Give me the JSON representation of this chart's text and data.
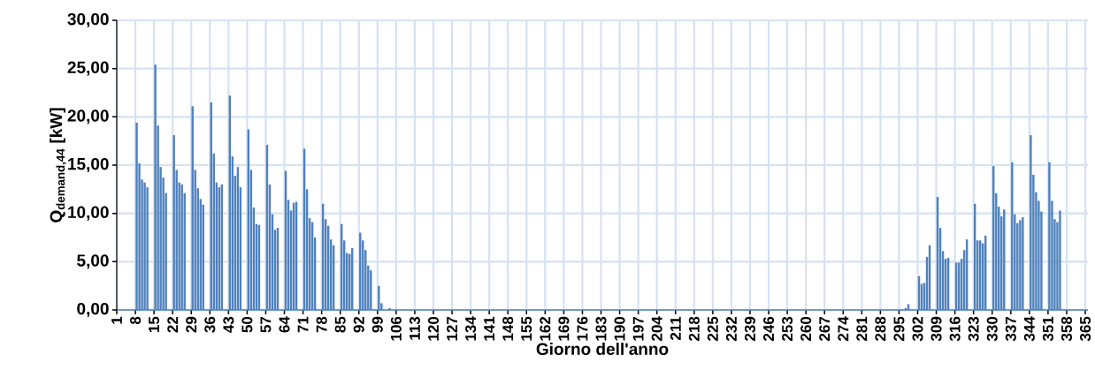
{
  "chart_data": {
    "type": "bar",
    "xlabel": "Giorno dell'anno",
    "ylabel": "Q$_{demand,44}$ [kW]",
    "color": "#4f81bd",
    "grid": true,
    "x": [
      8,
      9,
      10,
      11,
      12,
      15,
      16,
      17,
      18,
      19,
      22,
      23,
      24,
      25,
      26,
      29,
      30,
      31,
      32,
      33,
      36,
      37,
      38,
      39,
      40,
      43,
      44,
      45,
      46,
      47,
      50,
      51,
      52,
      53,
      54,
      57,
      58,
      59,
      60,
      61,
      64,
      65,
      66,
      67,
      68,
      71,
      72,
      73,
      74,
      75,
      78,
      79,
      80,
      81,
      82,
      85,
      86,
      87,
      88,
      89,
      92,
      93,
      94,
      95,
      96,
      99,
      100,
      103,
      297,
      298,
      302,
      303,
      304,
      305,
      306,
      309,
      310,
      311,
      312,
      313,
      316,
      317,
      318,
      319,
      320,
      323,
      324,
      325,
      326,
      327,
      330,
      331,
      332,
      333,
      334,
      337,
      338,
      339,
      340,
      341,
      344,
      345,
      346,
      347,
      348,
      351,
      352,
      353,
      354,
      355
    ],
    "values": [
      19.4,
      15.2,
      13.5,
      13.2,
      12.7,
      25.4,
      19.1,
      14.8,
      13.7,
      12.1,
      18.1,
      14.5,
      13.2,
      13.0,
      12.1,
      21.1,
      14.5,
      12.6,
      11.5,
      10.9,
      21.5,
      16.2,
      13.2,
      12.7,
      13.0,
      22.2,
      15.9,
      13.9,
      14.8,
      12.7,
      18.7,
      14.5,
      10.6,
      8.9,
      8.8,
      17.1,
      13.0,
      9.9,
      8.3,
      8.5,
      14.4,
      11.4,
      10.3,
      11.1,
      11.2,
      16.7,
      12.5,
      9.5,
      9.1,
      7.5,
      11.0,
      9.4,
      8.7,
      7.3,
      6.7,
      8.9,
      7.2,
      5.9,
      5.8,
      6.4,
      8.0,
      7.2,
      6.2,
      4.6,
      4.1,
      2.5,
      0.7,
      0.2,
      0.2,
      0.6,
      3.5,
      2.7,
      2.8,
      5.5,
      6.7,
      11.7,
      8.5,
      6.1,
      5.3,
      5.4,
      4.9,
      4.9,
      5.3,
      6.2,
      7.3,
      11.0,
      7.2,
      7.2,
      6.9,
      7.7,
      14.9,
      12.1,
      10.7,
      9.7,
      10.4,
      15.3,
      9.9,
      9.0,
      9.3,
      9.6,
      18.1,
      14.0,
      12.2,
      11.3,
      10.2,
      15.3,
      11.3,
      9.4,
      9.1,
      10.3
    ],
    "xlim": [
      1,
      366
    ],
    "xticks": [
      1,
      8,
      15,
      22,
      29,
      36,
      43,
      50,
      57,
      64,
      71,
      78,
      85,
      92,
      99,
      106,
      113,
      120,
      127,
      134,
      141,
      148,
      155,
      162,
      169,
      176,
      183,
      190,
      197,
      204,
      211,
      218,
      225,
      232,
      239,
      246,
      253,
      260,
      267,
      274,
      281,
      288,
      295,
      302,
      309,
      316,
      323,
      330,
      337,
      344,
      351,
      358,
      365
    ],
    "ylim": [
      0,
      30
    ],
    "yticks": [
      {
        "value": 0,
        "label": "0,00"
      },
      {
        "value": 5,
        "label": "5,00"
      },
      {
        "value": 10,
        "label": "10,00"
      },
      {
        "value": 15,
        "label": "15,00"
      },
      {
        "value": 20,
        "label": "20,00"
      },
      {
        "value": 25,
        "label": "25,00"
      },
      {
        "value": 30,
        "label": "30,00"
      }
    ]
  }
}
